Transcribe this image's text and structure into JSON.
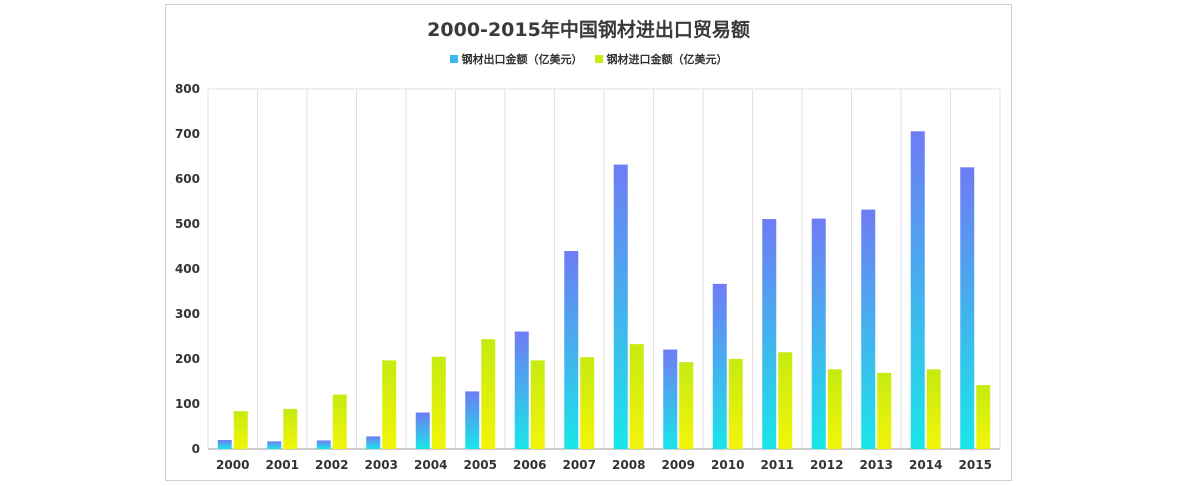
{
  "chart_data": {
    "type": "bar",
    "title": "2000-2015年中国钢材进出口贸易额",
    "categories": [
      "2000",
      "2001",
      "2002",
      "2003",
      "2004",
      "2005",
      "2006",
      "2007",
      "2008",
      "2009",
      "2010",
      "2011",
      "2012",
      "2013",
      "2014",
      "2015"
    ],
    "series": [
      {
        "name": "钢材出口金额（亿美元）",
        "values": [
          20,
          17,
          19,
          28,
          81,
          128,
          261,
          440,
          632,
          221,
          367,
          511,
          512,
          532,
          706,
          626
        ],
        "color_top": "#6f7cf4",
        "color_bottom": "#19e6e8"
      },
      {
        "name": "钢材进口金额（亿美元）",
        "values": [
          84,
          89,
          121,
          197,
          205,
          244,
          197,
          204,
          233,
          193,
          200,
          215,
          177,
          169,
          177,
          142
        ],
        "color_top": "#c6ea10",
        "color_bottom": "#f2f508"
      }
    ],
    "ylim": [
      0,
      800
    ],
    "yticks": [
      0,
      100,
      200,
      300,
      400,
      500,
      600,
      700,
      800
    ],
    "grid": "vertical",
    "legend": "top-center"
  }
}
